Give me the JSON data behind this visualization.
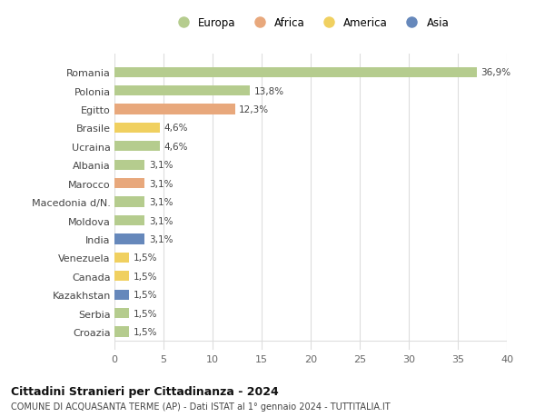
{
  "countries": [
    "Romania",
    "Polonia",
    "Egitto",
    "Brasile",
    "Ucraina",
    "Albania",
    "Marocco",
    "Macedonia d/N.",
    "Moldova",
    "India",
    "Venezuela",
    "Canada",
    "Kazakhstan",
    "Serbia",
    "Croazia"
  ],
  "values": [
    36.9,
    13.8,
    12.3,
    4.6,
    4.6,
    3.1,
    3.1,
    3.1,
    3.1,
    3.1,
    1.5,
    1.5,
    1.5,
    1.5,
    1.5
  ],
  "labels": [
    "36,9%",
    "13,8%",
    "12,3%",
    "4,6%",
    "4,6%",
    "3,1%",
    "3,1%",
    "3,1%",
    "3,1%",
    "3,1%",
    "1,5%",
    "1,5%",
    "1,5%",
    "1,5%",
    "1,5%"
  ],
  "continents": [
    "Europa",
    "Europa",
    "Africa",
    "America",
    "Europa",
    "Europa",
    "Africa",
    "Europa",
    "Europa",
    "Asia",
    "America",
    "America",
    "Asia",
    "Europa",
    "Europa"
  ],
  "colors": {
    "Europa": "#b5cc8e",
    "Africa": "#e8a87c",
    "America": "#f0d060",
    "Asia": "#6688bb"
  },
  "legend_order": [
    "Europa",
    "Africa",
    "America",
    "Asia"
  ],
  "xlim": [
    0,
    40
  ],
  "xticks": [
    0,
    5,
    10,
    15,
    20,
    25,
    30,
    35,
    40
  ],
  "title": "Cittadini Stranieri per Cittadinanza - 2024",
  "subtitle": "COMUNE DI ACQUASANTA TERME (AP) - Dati ISTAT al 1° gennaio 2024 - TUTTITALIA.IT",
  "bg_color": "#ffffff",
  "grid_color": "#dddddd",
  "bar_height": 0.55
}
